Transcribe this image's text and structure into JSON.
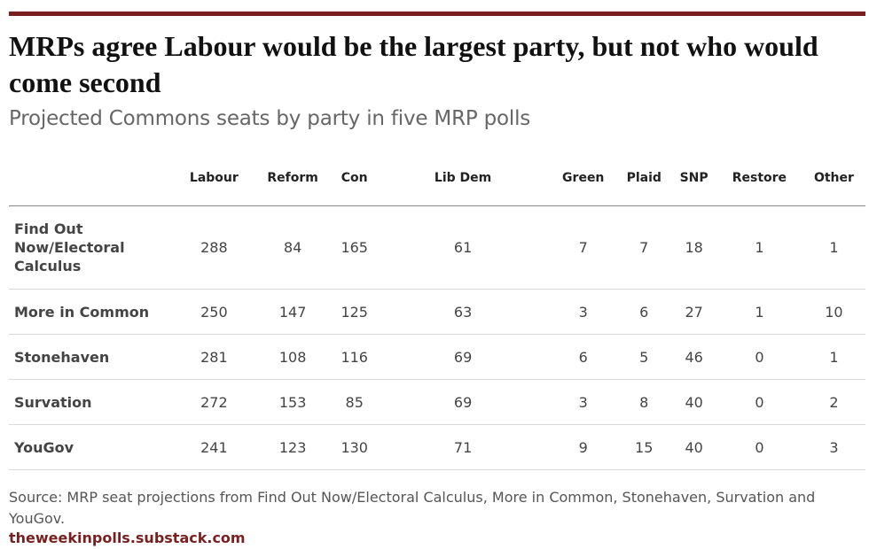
{
  "chart_data": {
    "type": "table",
    "title": "MRPs agree Labour would be the largest party, but not who would come second",
    "subtitle": "Projected Commons seats by party in five MRP polls",
    "columns": [
      "Labour",
      "Reform",
      "Con",
      "Lib Dem",
      "Green",
      "Plaid",
      "SNP",
      "Restore",
      "Other"
    ],
    "rows": [
      {
        "name": "Find Out Now/Electoral Calculus",
        "values": [
          288,
          84,
          165,
          61,
          7,
          7,
          18,
          1,
          1
        ]
      },
      {
        "name": "More in Common",
        "values": [
          250,
          147,
          125,
          63,
          3,
          6,
          27,
          1,
          10
        ]
      },
      {
        "name": "Stonehaven",
        "values": [
          281,
          108,
          116,
          69,
          6,
          5,
          46,
          0,
          1
        ]
      },
      {
        "name": "Survation",
        "values": [
          272,
          153,
          85,
          69,
          3,
          8,
          40,
          0,
          2
        ]
      },
      {
        "name": "YouGov",
        "values": [
          241,
          123,
          130,
          71,
          9,
          15,
          40,
          0,
          3
        ]
      }
    ],
    "source": "Source: MRP seat projections from Find Out Now/Electoral Calculus, More in Common, Stonehaven, Survation and YouGov.",
    "brand": "theweekinpolls.substack.com"
  },
  "colors": {
    "accent": "#7a1f1f",
    "text": "#444444",
    "subtitle": "#666666"
  }
}
